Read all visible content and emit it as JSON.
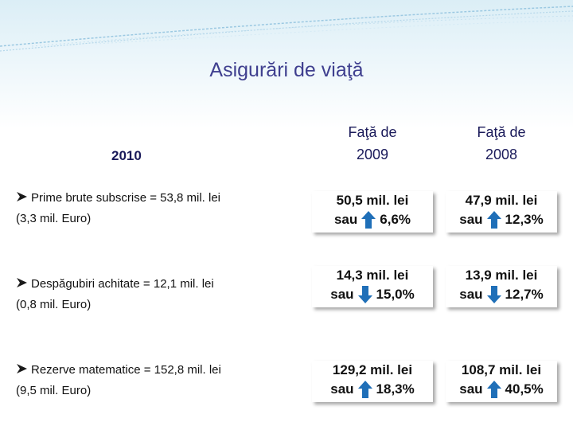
{
  "title": "Asigurări de viaţă",
  "year_label": "2010",
  "columns": [
    {
      "line1": "Faţă de",
      "line2": "2009"
    },
    {
      "line1": "Faţă de",
      "line2": "2008"
    }
  ],
  "rows": [
    {
      "label_line1": "Prime brute subscrise = 53,8 mil. lei",
      "label_line2": "(3,3 mil. Euro)",
      "cells": [
        {
          "value": "50,5 mil. lei",
          "sau": "sau",
          "direction": "up",
          "pct": "6,6%"
        },
        {
          "value": "47,9 mil. lei",
          "sau": "sau",
          "direction": "up",
          "pct": "12,3%"
        }
      ]
    },
    {
      "label_line1": "Despăgubiri achitate = 12,1 mil. lei",
      "label_line2": "(0,8 mil. Euro)",
      "cells": [
        {
          "value": "14,3 mil. lei",
          "sau": "sau",
          "direction": "down",
          "pct": "15,0%"
        },
        {
          "value": "13,9 mil. lei",
          "sau": "sau",
          "direction": "down",
          "pct": "12,7%"
        }
      ]
    },
    {
      "label_line1": "Rezerve matematice = 152,8 mil. lei",
      "label_line2": "(9,5 mil. Euro)",
      "cells": [
        {
          "value": "129,2 mil. lei",
          "sau": "sau",
          "direction": "up",
          "pct": "18,3%"
        },
        {
          "value": "108,7 mil. lei",
          "sau": "sau",
          "direction": "up",
          "pct": "40,5%"
        }
      ]
    }
  ],
  "colors": {
    "title": "#3f3f8f",
    "arrow": "#1f6fb8",
    "swoosh": "#7fb8d8"
  },
  "icons": {
    "bullet": "arrow-bullet-icon",
    "up": "arrow-up-icon",
    "down": "arrow-down-icon"
  }
}
